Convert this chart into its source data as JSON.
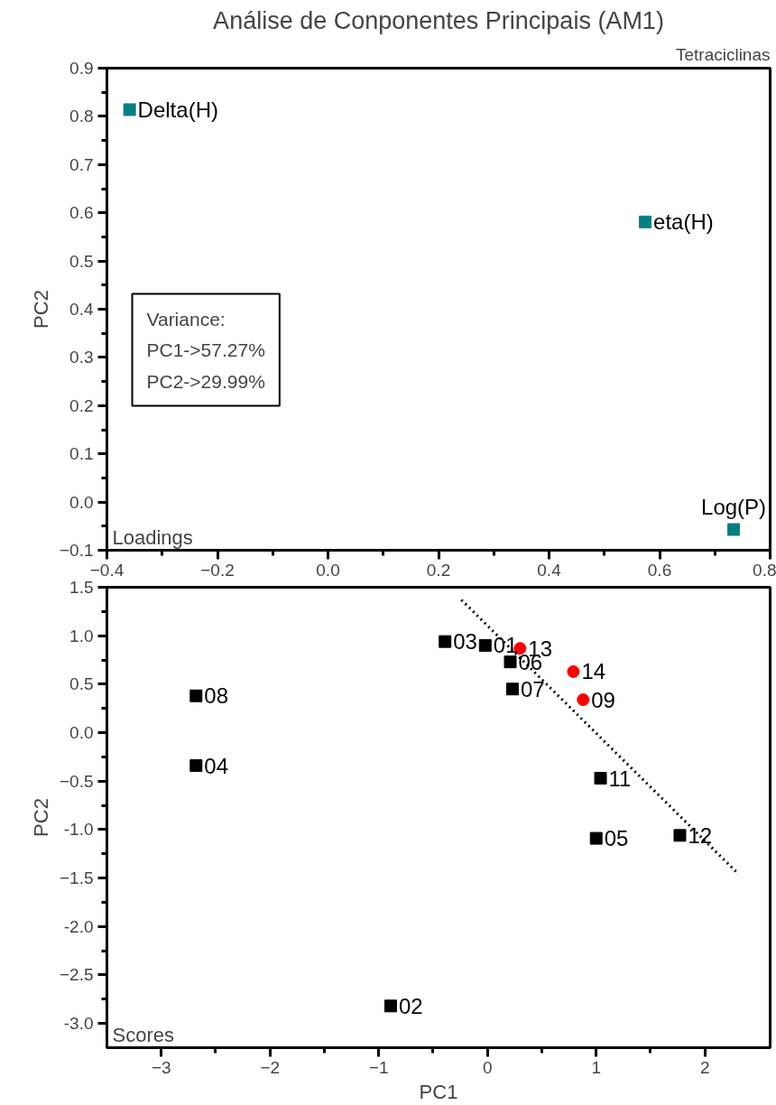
{
  "chart_data": [
    {
      "type": "scatter",
      "title": "Análise de Conponentes Principais (AM1)",
      "ylabel": "PC2",
      "annotations": [
        "Tetraciclinas",
        "Loadings",
        "Variance:\nPC1->57.27%\nPC2->29.99%",
        {
          "text": "Delta(H)",
          "x": -0.359,
          "y": 0.814
        },
        {
          "text": "eta(H)",
          "x": 0.574,
          "y": 0.581
        },
        {
          "text": "Log(P)",
          "x": 0.734,
          "y": -0.057
        }
      ],
      "xlim": [
        -0.4,
        0.8
      ],
      "ylim": [
        -0.1,
        0.9
      ],
      "xticks": [
        -0.4,
        -0.2,
        {
          "value": 0,
          "label": "0.0"
        },
        0.2,
        0.4,
        0.6,
        0.8
      ],
      "yticks": [
        -0.1,
        {
          "value": 0,
          "label": "0.0"
        },
        0.1,
        0.2,
        0.3,
        0.4,
        0.5,
        0.6,
        0.7,
        0.8,
        0.9
      ],
      "grid": false,
      "marker": "square",
      "series": [
        {
          "color": "#008080",
          "x": [
            -0.359,
            0.574,
            0.734
          ],
          "values": [
            0.814,
            0.581,
            -0.057
          ]
        }
      ]
    },
    {
      "type": "scatter",
      "xlabel": "PC1",
      "ylabel": "PC2",
      "annotations": [
        "Scores",
        {
          "text": "08",
          "x": -2.68,
          "y": 0.38
        },
        {
          "text": "04",
          "x": -2.68,
          "y": -0.34
        },
        {
          "text": "02",
          "x": -0.89,
          "y": -2.82
        },
        {
          "text": "03",
          "x": -0.39,
          "y": 0.94
        },
        {
          "text": "01",
          "x": -0.02,
          "y": 0.9
        },
        {
          "text": "06",
          "x": 0.21,
          "y": 0.73
        },
        {
          "text": "07",
          "x": 0.23,
          "y": 0.45
        },
        {
          "text": "11",
          "x": 1.04,
          "y": -0.47
        },
        {
          "text": "05",
          "x": 1.0,
          "y": -1.09
        },
        {
          "text": "12",
          "x": 1.77,
          "y": -1.06
        },
        {
          "text": "13",
          "x": 0.3,
          "y": 0.87
        },
        {
          "text": "14",
          "x": 0.79,
          "y": 0.63
        },
        {
          "text": "09",
          "x": 0.88,
          "y": 0.34
        }
      ],
      "xlim": [
        -3.5,
        2.6
      ],
      "ylim": [
        -3.25,
        1.5
      ],
      "xticks": [
        -3,
        -2,
        -1,
        0,
        1,
        2
      ],
      "yticks": [
        1.5,
        {
          "value": 1,
          "label": "1.0"
        },
        0.5,
        {
          "value": 0,
          "label": "0.0"
        },
        -0.5,
        {
          "value": -1,
          "label": "-1.0"
        },
        -1.5,
        {
          "value": -2,
          "label": "-2.0"
        },
        -2.5,
        {
          "value": -3,
          "label": "-3.0"
        }
      ],
      "grid": false,
      "series": [
        {
          "color": "#000000",
          "marker": "square",
          "x": [
            -2.68,
            -2.68,
            -0.89,
            -0.39,
            -0.02,
            0.21,
            0.23,
            1.04,
            1.0,
            1.77
          ],
          "values": [
            0.38,
            -0.34,
            -2.82,
            0.94,
            0.9,
            0.73,
            0.45,
            -0.47,
            -1.09,
            -1.06
          ]
        },
        {
          "color": "#ff0000",
          "marker": "circle",
          "x": [
            0.3,
            0.79,
            0.88
          ],
          "values": [
            0.87,
            0.63,
            0.34
          ]
        },
        {
          "type": "line",
          "color": "#000000",
          "line_style": "dotted",
          "x": [
            -0.24,
            2.31
          ],
          "values": [
            1.37,
            -1.46
          ]
        }
      ]
    }
  ]
}
